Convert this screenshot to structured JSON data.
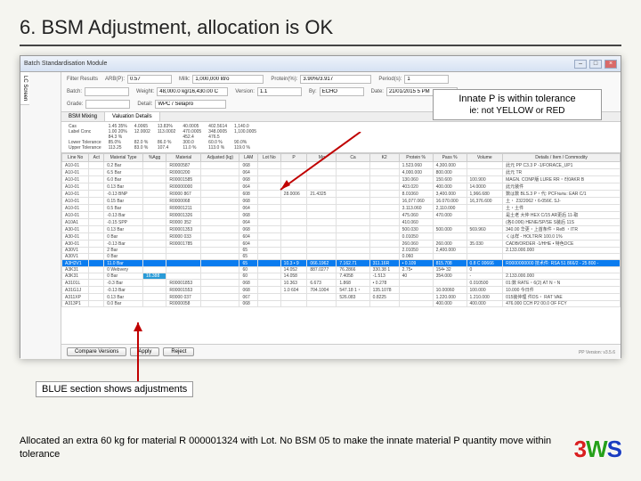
{
  "heading": "6. BSM Adjustment, allocation is OK",
  "callout": {
    "line1": "Innate P is within tolerance",
    "line2": "ie: not YELLOW or RED"
  },
  "note_blue": "BLUE section shows adjustments",
  "note_bottom": "Allocated an extra 60 kg for material R 000001324 with Lot. No BSM 05 to make the innate material P quantity move within tolerance",
  "logo": {
    "a": "3",
    "b": "W",
    "c": "S"
  },
  "window": {
    "title": "Batch Standardisation Module",
    "version": "PP Version: v3.5.6",
    "form": {
      "filter_label": "Filter Results",
      "batch_label": "Batch:",
      "batch": "",
      "grade_label": "Grade:",
      "grade": "",
      "mat_label": "Material:",
      "mat": "",
      "arb_label": "ARB(P):",
      "arb": "0.57",
      "period_label": "Period(s):",
      "period": "1",
      "milk_label": "Milk:",
      "milk": "1,000,000 litro",
      "wt_label": "Weight:",
      "wt": "48,000.0 kg/16,430.00 C",
      "ver_label": "Version:",
      "ver": "1.1",
      "by_label": "By:",
      "by": "ECHO",
      "date_label": "Date:",
      "date": "21/01/2015 5 PM",
      "prot_label": "Protein(%):",
      "prot": "3.90%/3.917",
      "detail_label": "Detail:",
      "detail": "WPC / Selapro"
    },
    "tabs": [
      "BSM Mixing",
      "Valuation Details"
    ],
    "summary": {
      "cols": [
        "",
        "%",
        "",
        "",
        "",
        "",
        ""
      ],
      "rows": [
        [
          "Cas",
          "1.45 35%",
          "4.0065",
          "13.83%",
          "40.0005",
          "402.5614",
          "1,140.0"
        ],
        [
          "Label Conc",
          "1.00 20%",
          "12.0002",
          "113.0002",
          "470.0005",
          "348.0005",
          "1,100.0005"
        ],
        [
          "",
          "84.3 %",
          "",
          "",
          "452.4",
          "476.5",
          ""
        ],
        [
          "Lower Tolerance",
          "85.0%",
          "82.0 %",
          "86.0 %",
          "300.0",
          "60.0 %",
          "90.0%"
        ],
        [
          "Upper Tolerance",
          "113.25",
          "83.0 %",
          "107.4",
          "11.0 %",
          "113.0 %",
          "119.0 %"
        ]
      ]
    },
    "grid": {
      "headers": [
        "Line No",
        "Act",
        "Material Type",
        "%Agg",
        "Material",
        "Adjusted (kg)",
        "LAM",
        "Lot No",
        "P",
        "Mg",
        "Ca",
        "K2",
        "Protein %",
        "Pass %",
        "Volume",
        "Details / Item / Commodity"
      ],
      "rows": [
        [
          "A10-01",
          "",
          "0.2 Bar",
          "",
          "R0000587",
          "",
          "068",
          "",
          "",
          "",
          "",
          "",
          "1.523.060",
          "4,300.000",
          "",
          "此元 РР C3.3 Р -1/FORAСE_UP1"
        ],
        [
          "A10-01",
          "",
          "6.5 Bar",
          "",
          "R0000200",
          "",
          "064",
          "",
          "",
          "",
          "",
          "",
          "4,000.000",
          "800.000",
          "",
          "此元 ТR"
        ],
        [
          "A10-01",
          "",
          "6.0 Bar",
          "",
          "R00001585",
          "",
          "068",
          "",
          "",
          "",
          "",
          "",
          "130.060",
          "150.600",
          "100.900",
          "MAGN. CONP版 LURE RR・라0AKR B"
        ],
        [
          "A10-01",
          "",
          "0.13 Bar",
          "",
          "R00000000",
          "",
          "064",
          "",
          "",
          "",
          "",
          "",
          "403.020",
          "400.000",
          "14.0000",
          "此元装件"
        ],
        [
          "A10-01",
          "",
          "-0.13 BNP",
          "",
          "R0000 867",
          "",
          "608",
          "",
          "28.0006",
          "21.4325",
          "",
          "",
          "8.01060",
          "3,400.000",
          "1,966.680",
          "数は数 BLS.3 Р・代: PCF№№: EAR C/1"
        ],
        [
          "A10-01",
          "",
          "0.15 Bar",
          "",
          "R0000068",
          "",
          "068",
          "",
          "",
          "",
          "",
          "",
          "16,077.060",
          "16.070.000",
          "16,376.600",
          "土・ 2322062・6-056€. SJ-"
        ],
        [
          "A10-01",
          "",
          "0.5 Bar",
          "",
          "R00001211",
          "",
          "064",
          "",
          "",
          "",
          "",
          "",
          "3.113.060",
          "2,110.000",
          "",
          "土・土件"
        ],
        [
          "A10-01",
          "",
          "-0.13 Bar",
          "",
          "R00001326",
          "",
          "068",
          "",
          "",
          "",
          "",
          "",
          "475.060",
          "470.000",
          "",
          "是土老 大仲 HEX C/15 AR更后 11-取"
        ],
        [
          "A10A1",
          "",
          "-0.15 SPP",
          "",
          "R0000 352",
          "",
          "064",
          "",
          "",
          "",
          "",
          "",
          "410.060",
          "",
          "",
          "(各0.006) HENE/SP/SE S装后 11S"
        ],
        [
          "A30-01",
          "",
          "0.13 Bar",
          "",
          "R00001353",
          "",
          "068",
          "",
          "",
          "",
          "",
          "",
          "500.030",
          "500.000",
          "569.960",
          "340.00 华更・上首条件・ReВ ・ITR"
        ],
        [
          "A30-01",
          "",
          "0 Bar",
          "",
          "R0000 033",
          "",
          "604",
          "",
          "",
          "",
          "",
          "",
          "0.01050",
          "",
          "",
          "くは样 - HOLTR/R 100.0 1%"
        ],
        [
          "A30-01",
          "",
          "-0.13 Bar",
          "",
          "R00001785",
          "",
          "604",
          "",
          "",
          "",
          "",
          "",
          "260.060",
          "260.000",
          "35.030",
          "CADB/ORDER -1/HHE • 特色DCE"
        ],
        [
          "A30V1",
          "",
          "2 Bar",
          "",
          "",
          "",
          "65",
          "",
          "",
          "",
          "",
          "",
          "2.01050",
          "2,400.000",
          "",
          "2.133.000.000"
        ],
        [
          "A30V1",
          "",
          "0 Bar",
          "",
          "",
          "",
          "65",
          "",
          "",
          "",
          "",
          "",
          "0.060",
          "",
          "",
          ""
        ],
        [
          "A3H2V1",
          "",
          "11.0 Bar",
          "",
          "",
          "",
          "65",
          "",
          "10.3 • 9",
          "066.1962",
          "7.162.71",
          "311.16R",
          "• 0.109",
          "815.708",
          "0.8 С 00666",
          "R0000000000   技术件: RSA 51 866/2 - 25 800 -"
        ],
        [
          "A3K31",
          "",
          "0 Webvery",
          "",
          "",
          "",
          "60",
          "",
          "14.052",
          "887.0277",
          "76.2866",
          "330.38 1",
          "2.75•",
          "154• 32",
          "0",
          ""
        ],
        [
          "A3K31",
          "",
          "0 Bar",
          "16.388",
          "",
          "",
          "60",
          "",
          "14.058",
          "",
          "7.4058",
          "-1.513",
          "40",
          "354.000",
          "-",
          "2.133.000.000"
        ],
        [
          "A3101L",
          "",
          "-0.3 Bar",
          "",
          "R00001853",
          "",
          "068",
          "",
          "10.363",
          "6.673",
          "1.868",
          "• 0.278",
          "",
          "",
          "0.010500",
          "01:数 RATE・6(2) AT N・N"
        ],
        [
          "A31G1J",
          "",
          "-0.13 Bar",
          "",
          "R00001553",
          "",
          "068",
          "",
          "1.0 604",
          "704.1004",
          "547.18 1・",
          "135.1078",
          "",
          "10.00060",
          "100.000",
          "10.000 今日件"
        ],
        [
          "A311XP",
          "",
          "0.13 Bar",
          "",
          "R0000 037",
          "",
          "067",
          "",
          "",
          "",
          "526.083",
          "0.8225",
          "",
          "1.220.000",
          "1.210.000",
          "015装仲理 件DS・ RAT VAE"
        ],
        [
          "A313P1",
          "",
          "0.0 Bar",
          "",
          "R0000058",
          "",
          "068",
          "",
          "",
          "",
          "",
          "",
          "",
          "400.000",
          "400.000",
          "476.000 CCH P2 00.0 OF FCY"
        ]
      ],
      "highlight_row_index": 14,
      "md_col_index": 3,
      "md_rows": [
        16
      ]
    },
    "buttons": [
      "Compare Versions",
      "Apply",
      "Reject"
    ]
  },
  "colors": {
    "highlight": "#0a7cef",
    "md_cell": "#2a9bd7",
    "arrow": "#c00000"
  }
}
